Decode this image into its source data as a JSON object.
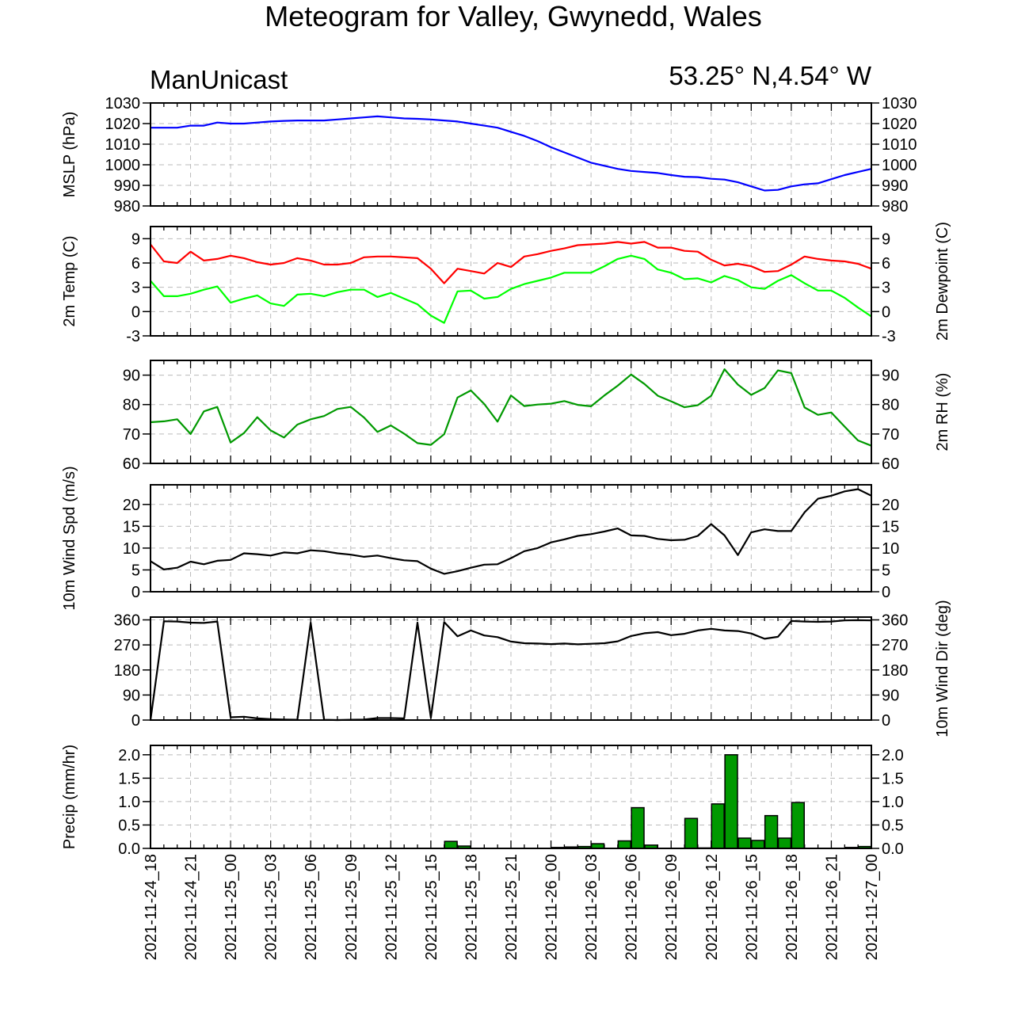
{
  "title": "Meteogram for Valley, Gwynedd, Wales",
  "model_label": "ManUnicast",
  "location_label": "53.25° N,4.54° W",
  "time_labels": [
    "2021-11-24_18",
    "2021-11-24_21",
    "2021-11-25_00",
    "2021-11-25_03",
    "2021-11-25_06",
    "2021-11-25_09",
    "2021-11-25_12",
    "2021-11-25_15",
    "2021-11-25_18",
    "2021-11-25_21",
    "2021-11-26_00",
    "2021-11-26_03",
    "2021-11-26_06",
    "2021-11-26_09",
    "2021-11-26_12",
    "2021-11-26_15",
    "2021-11-26_18",
    "2021-11-26_21",
    "2021-11-27_00"
  ],
  "colors": {
    "mslp": "#0000ff",
    "temp": "#ff0000",
    "dewpoint": "#00ff00",
    "rh": "#009900",
    "wind": "#000000",
    "precip": "#009900",
    "grid": "#bbbbbb"
  },
  "chart_data": [
    {
      "type": "line",
      "panel": "mslp",
      "x_hours": [
        0,
        1,
        2,
        3,
        4,
        5,
        6,
        7,
        8,
        9,
        10,
        11,
        12,
        13,
        14,
        15,
        16,
        17,
        18,
        19,
        20,
        21,
        22,
        23,
        24,
        25,
        26,
        27,
        28,
        29,
        30,
        31,
        32,
        33,
        34,
        35,
        36,
        37,
        38,
        39,
        40,
        41,
        42,
        43,
        44,
        45,
        46,
        47,
        48,
        49,
        50,
        51,
        52,
        53,
        54
      ],
      "series": [
        {
          "values": [
            1018,
            1018,
            1018,
            1019,
            1019,
            1020.5,
            1020,
            1020,
            1020.5,
            1021,
            1021.3,
            1021.5,
            1021.5,
            1021.5,
            1022,
            1022.5,
            1023,
            1023.5,
            1023,
            1022.5,
            1022.3,
            1022,
            1021.5,
            1021,
            1020,
            1019,
            1018,
            1016,
            1014,
            1011.5,
            1008.5,
            1006,
            1003.5,
            1001,
            999.5,
            998,
            997,
            996.5,
            996,
            995,
            994.2,
            994,
            993.2,
            992.8,
            991.5,
            989.5,
            987.5,
            987.8,
            989.5,
            990.5,
            991,
            993,
            995,
            996.5,
            998
          ]
        }
      ],
      "ylabel_left": "MSLP (hPa)",
      "ylim": [
        980,
        1030
      ],
      "yticks": [
        980,
        990,
        1000,
        1010,
        1020,
        1030
      ],
      "ticks_right": true
    },
    {
      "type": "line",
      "panel": "temperature",
      "x_hours": [
        0,
        1,
        2,
        3,
        4,
        5,
        6,
        7,
        8,
        9,
        10,
        11,
        12,
        13,
        14,
        15,
        16,
        17,
        18,
        19,
        20,
        21,
        22,
        23,
        24,
        25,
        26,
        27,
        28,
        29,
        30,
        31,
        32,
        33,
        34,
        35,
        36,
        37,
        38,
        39,
        40,
        41,
        42,
        43,
        44,
        45,
        46,
        47,
        48,
        49,
        50,
        51,
        52,
        53,
        54
      ],
      "series": [
        {
          "name": "2m Temp",
          "color": "#ff0000",
          "values": [
            8.3,
            6.2,
            6.0,
            7.4,
            6.3,
            6.5,
            6.9,
            6.6,
            6.1,
            5.8,
            6.0,
            6.6,
            6.3,
            5.8,
            5.8,
            6.0,
            6.7,
            6.8,
            6.8,
            6.7,
            6.6,
            5.3,
            3.5,
            5.3,
            5.0,
            4.7,
            6.0,
            5.5,
            6.8,
            7.1,
            7.5,
            7.8,
            8.2,
            8.3,
            8.4,
            8.6,
            8.4,
            8.6,
            7.9,
            7.9,
            7.5,
            7.4,
            6.4,
            5.7,
            5.9,
            5.6,
            4.9,
            5.0,
            5.8,
            6.8,
            6.5,
            6.3,
            6.2,
            5.9,
            5.3
          ]
        },
        {
          "name": "2m Dewpoint",
          "color": "#00ff00",
          "values": [
            3.8,
            1.9,
            1.9,
            2.2,
            2.7,
            3.1,
            1.1,
            1.6,
            2.0,
            1.0,
            0.7,
            2.1,
            2.2,
            1.9,
            2.4,
            2.7,
            2.7,
            1.8,
            2.3,
            1.6,
            0.9,
            -0.5,
            -1.4,
            2.5,
            2.6,
            1.6,
            1.8,
            2.8,
            3.4,
            3.8,
            4.2,
            4.8,
            4.8,
            4.8,
            5.6,
            6.5,
            6.9,
            6.5,
            5.2,
            4.8,
            4.0,
            4.1,
            3.6,
            4.4,
            3.9,
            3.0,
            2.8,
            3.8,
            4.5,
            3.5,
            2.6,
            2.6,
            1.7,
            0.5,
            -0.6
          ]
        }
      ],
      "ylabel_left": "2m Temp (C)",
      "ylabel_right": "2m Dewpoint (C)",
      "ylim": [
        -3,
        10.5
      ],
      "yticks": [
        -3,
        0,
        3,
        6,
        9
      ]
    },
    {
      "type": "line",
      "panel": "rh",
      "x_hours": [
        0,
        1,
        2,
        3,
        4,
        5,
        6,
        7,
        8,
        9,
        10,
        11,
        12,
        13,
        14,
        15,
        16,
        17,
        18,
        19,
        20,
        21,
        22,
        23,
        24,
        25,
        26,
        27,
        28,
        29,
        30,
        31,
        32,
        33,
        34,
        35,
        36,
        37,
        38,
        39,
        40,
        41,
        42,
        43,
        44,
        45,
        46,
        47,
        48,
        49,
        50,
        51,
        52,
        53,
        54
      ],
      "series": [
        {
          "values": [
            74,
            74.3,
            75,
            70,
            77.7,
            79.2,
            67.1,
            70.3,
            75.7,
            71.2,
            68.8,
            73.2,
            75,
            76.1,
            78.5,
            79.2,
            75.6,
            70.7,
            72.9,
            70.1,
            66.9,
            66.3,
            69.9,
            82.4,
            84.8,
            80.2,
            74.2,
            83.1,
            79.5,
            80,
            80.3,
            81.2,
            79.9,
            79.4,
            83.1,
            86.4,
            90.2,
            87,
            83,
            81.1,
            79.1,
            79.8,
            83,
            92,
            86.8,
            83.3,
            85.6,
            91.6,
            90.7,
            79,
            76.5,
            77.3,
            72.5,
            67.8,
            66
          ]
        }
      ],
      "ylabel_right": "2m RH (%)",
      "ylim": [
        60,
        95
      ],
      "yticks": [
        60,
        70,
        80,
        90
      ]
    },
    {
      "type": "line",
      "panel": "wind_speed",
      "x_hours": [
        0,
        1,
        2,
        3,
        4,
        5,
        6,
        7,
        8,
        9,
        10,
        11,
        12,
        13,
        14,
        15,
        16,
        17,
        18,
        19,
        20,
        21,
        22,
        23,
        24,
        25,
        26,
        27,
        28,
        29,
        30,
        31,
        32,
        33,
        34,
        35,
        36,
        37,
        38,
        39,
        40,
        41,
        42,
        43,
        44,
        45,
        46,
        47,
        48,
        49,
        50,
        51,
        52,
        53,
        54
      ],
      "series": [
        {
          "values": [
            7,
            5.1,
            5.5,
            6.9,
            6.3,
            7.1,
            7.3,
            8.8,
            8.6,
            8.3,
            9,
            8.8,
            9.5,
            9.3,
            8.8,
            8.5,
            8,
            8.3,
            7.7,
            7.2,
            7,
            5.3,
            4.1,
            4.7,
            5.5,
            6.2,
            6.3,
            7.7,
            9.3,
            10,
            11.3,
            12,
            12.8,
            13.2,
            13.8,
            14.5,
            12.9,
            12.8,
            12.1,
            11.8,
            11.9,
            12.8,
            15.5,
            12.9,
            8.4,
            13.6,
            14.3,
            13.9,
            13.9,
            18.2,
            21.3,
            22,
            23,
            23.5,
            22
          ]
        }
      ],
      "ylabel_left": "10m Wind Spd (m/s)",
      "ylim": [
        0,
        24.5
      ],
      "yticks": [
        0,
        5,
        10,
        15,
        20
      ]
    },
    {
      "type": "line",
      "panel": "wind_direction",
      "x_hours": [
        0,
        1,
        2,
        3,
        4,
        5,
        6,
        7,
        8,
        9,
        10,
        11,
        12,
        13,
        14,
        15,
        16,
        17,
        18,
        19,
        20,
        21,
        22,
        23,
        24,
        25,
        26,
        27,
        28,
        29,
        30,
        31,
        32,
        33,
        34,
        35,
        36,
        37,
        38,
        39,
        40,
        41,
        42,
        43,
        44,
        45,
        46,
        47,
        48,
        49,
        50,
        51,
        52,
        53,
        54
      ],
      "series": [
        {
          "values": [
            0,
            355,
            354,
            350,
            349,
            354,
            10,
            12,
            6,
            3,
            2,
            1,
            350,
            1,
            0,
            1,
            2,
            7,
            7,
            6,
            350,
            8,
            352,
            301,
            322,
            304,
            298,
            282,
            276,
            275,
            273,
            275,
            272,
            274,
            276,
            283,
            302,
            312,
            316,
            305,
            310,
            322,
            328,
            322,
            320,
            311,
            292,
            299,
            356,
            354,
            353,
            354,
            358,
            359,
            358
          ]
        }
      ],
      "ylabel_right": "10m Wind Dir (deg)",
      "ylim": [
        0,
        370
      ],
      "yticks": [
        0,
        90,
        180,
        270,
        360
      ]
    },
    {
      "type": "bar",
      "panel": "precipitation",
      "x_hours": [
        0,
        1,
        2,
        3,
        4,
        5,
        6,
        7,
        8,
        9,
        10,
        11,
        12,
        13,
        14,
        15,
        16,
        17,
        18,
        19,
        20,
        21,
        22,
        23,
        24,
        25,
        26,
        27,
        28,
        29,
        30,
        31,
        32,
        33,
        34,
        35,
        36,
        37,
        38,
        39,
        40,
        41,
        42,
        43,
        44,
        45,
        46,
        47,
        48,
        49,
        50,
        51,
        52,
        53
      ],
      "values": [
        0,
        0,
        0,
        0,
        0,
        0,
        0,
        0,
        0,
        0,
        0,
        0,
        0,
        0,
        0,
        0,
        0,
        0,
        0,
        0,
        0,
        0,
        0.15,
        0.05,
        0,
        0,
        0,
        0,
        0,
        0,
        0.02,
        0.03,
        0.04,
        0.1,
        0,
        0.16,
        0.87,
        0.07,
        0,
        0,
        0.64,
        0.01,
        0.95,
        2.0,
        0.22,
        0.17,
        0.7,
        0.22,
        0.98,
        0,
        0,
        0,
        0.02,
        0.04
      ],
      "ylabel_left": "Precip (mm/hr)",
      "ylim": [
        0,
        2.2
      ],
      "yticks": [
        0,
        0.5,
        1.0,
        1.5,
        2.0
      ],
      "ytick_labels": [
        "0.0",
        "0.5",
        "1.0",
        "1.5",
        "2.0"
      ]
    }
  ]
}
